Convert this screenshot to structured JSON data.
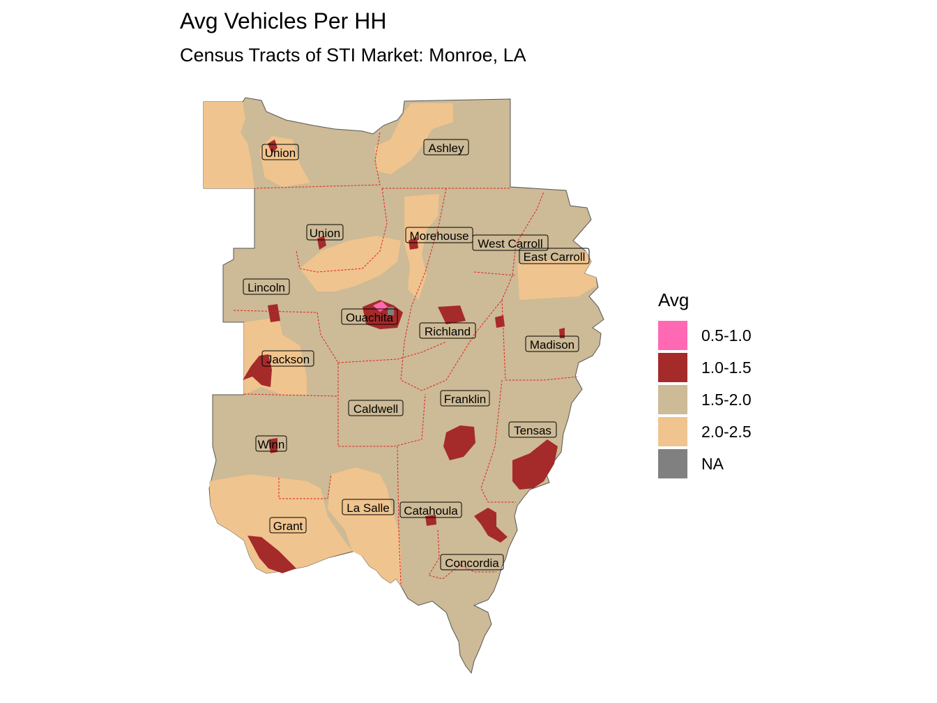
{
  "title": "Avg Vehicles Per HH",
  "subtitle": "Census Tracts of STI Market: Monroe, LA",
  "legend": {
    "title": "Avg",
    "items": [
      {
        "label": "0.5-1.0",
        "color": "#FF69B4"
      },
      {
        "label": "1.0-1.5",
        "color": "#A52A2A"
      },
      {
        "label": "1.5-2.0",
        "color": "#CDBA96"
      },
      {
        "label": "2.0-2.5",
        "color": "#F0C48E"
      },
      {
        "label": "NA",
        "color": "#808080"
      }
    ]
  },
  "county_labels": [
    "Union",
    "Ashley",
    "Union",
    "Morehouse",
    "West Carroll",
    "East Carroll",
    "Lincoln",
    "Ouachita",
    "Richland",
    "Madison",
    "Jackson",
    "Franklin",
    "Caldwell",
    "Tensas",
    "Winn",
    "La Salle",
    "Catahoula",
    "Grant",
    "Concordia"
  ]
}
